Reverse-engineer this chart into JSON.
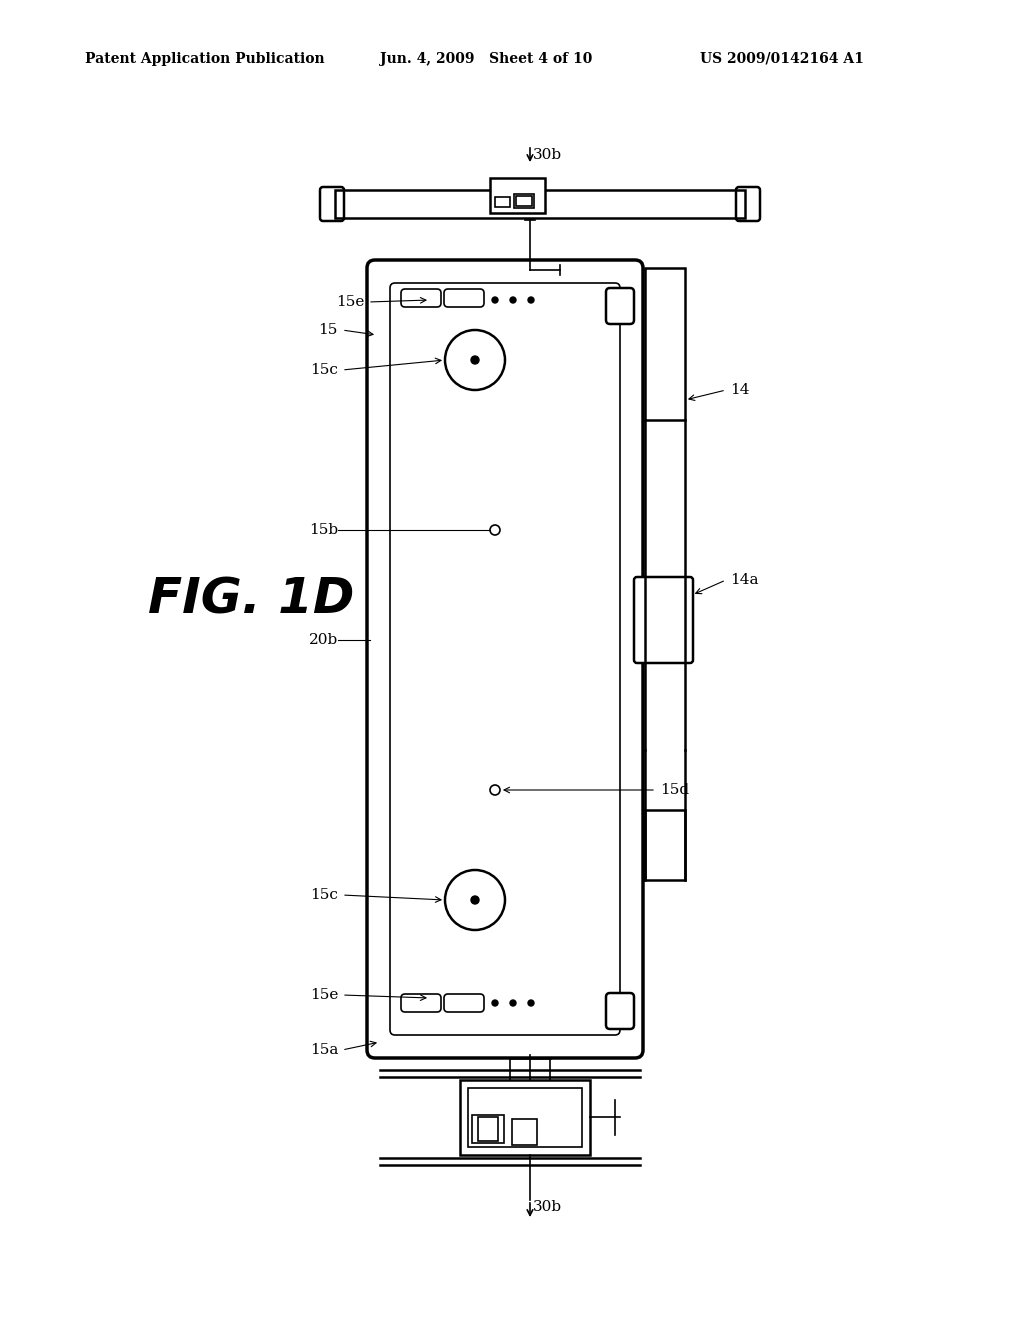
{
  "title_left": "Patent Application Publication",
  "title_mid": "Jun. 4, 2009   Sheet 4 of 10",
  "title_right": "US 2009/0142164 A1",
  "fig_label": "FIG. 1D",
  "bg_color": "#ffffff",
  "line_color": "#000000",
  "labels": {
    "30b_top": "30b",
    "15e_top": "15e",
    "15": "15",
    "15c_top": "15c",
    "15b": "15b",
    "14": "14",
    "20b": "20b",
    "14a": "14a",
    "15d": "15d",
    "15c_bot": "15c",
    "15e_bot": "15e",
    "15a": "15a",
    "30b_bot": "30b"
  }
}
